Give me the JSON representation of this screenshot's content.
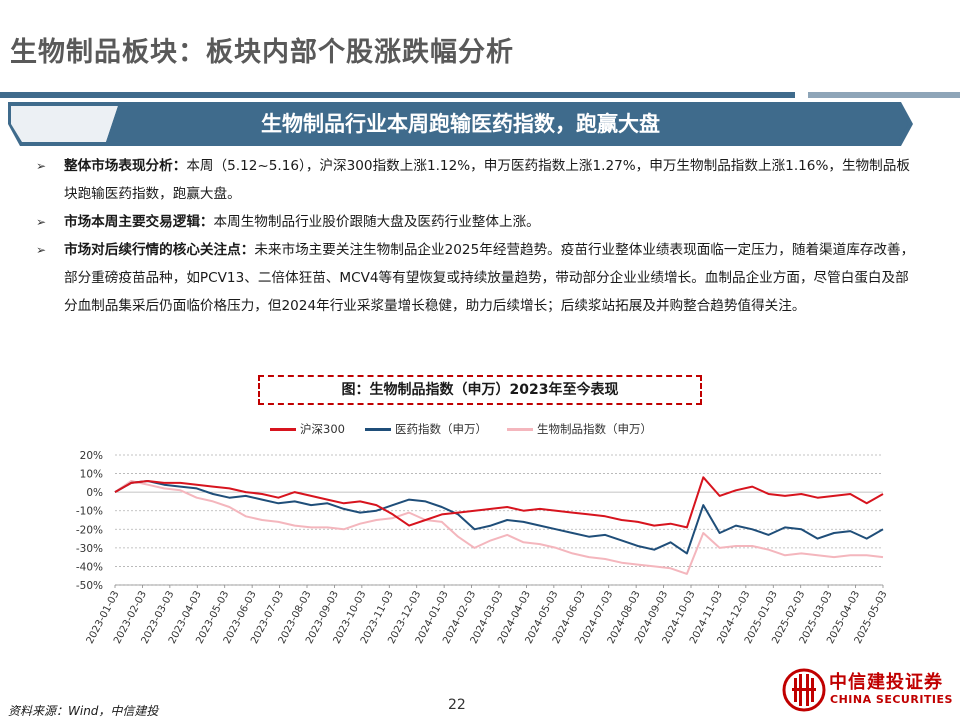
{
  "page": {
    "title": "生物制品板块：板块内部个股涨跌幅分析",
    "banner": "生物制品行业本周跑输医药指数，跑赢大盘",
    "bullets": [
      {
        "label": "整体市场表现分析：",
        "text": "本周（5.12~5.16），沪深300指数上涨1.12%，申万医药指数上涨1.27%，申万生物制品指数上涨1.16%，生物制品板块跑输医药指数，跑赢大盘。"
      },
      {
        "label": "市场本周主要交易逻辑：",
        "text": "本周生物制品行业股价跟随大盘及医药行业整体上涨。"
      },
      {
        "label": "市场对后续行情的核心关注点：",
        "text": "未来市场主要关注生物制品企业2025年经营趋势。疫苗行业整体业绩表现面临一定压力，随着渠道库存改善，部分重磅疫苗品种，如PCV13、二倍体狂苗、MCV4等有望恢复或持续放量趋势，带动部分企业业绩增长。血制品企业方面，尽管白蛋白及部分血制品集采后仍面临价格压力，但2024年行业采浆量增长稳健，助力后续增长；后续浆站拓展及并购整合趋势值得关注。"
      }
    ],
    "source": "资料来源：Wind，中信建投",
    "page_number": "22",
    "logo_cn": "中信建投证券",
    "logo_en": "CHINA SECURITIES"
  },
  "colors": {
    "accent_blue": "#3f6b8c",
    "hs300": "#d7141e",
    "pharma": "#1f4e79",
    "bio": "#f4b6bd",
    "logo_red": "#c00000"
  },
  "chart_data": {
    "type": "line",
    "title": "图：生物制品指数（申万）2023年至今表现",
    "ylim": [
      -50,
      20
    ],
    "yticks": [
      "20%",
      "10%",
      "0%",
      "-10%",
      "-20%",
      "-30%",
      "-40%",
      "-50%"
    ],
    "xtick_labels": [
      "2023-01-03",
      "2023-02-03",
      "2023-03-03",
      "2023-04-03",
      "2023-05-03",
      "2023-06-03",
      "2023-07-03",
      "2023-08-03",
      "2023-09-03",
      "2023-10-03",
      "2023-11-03",
      "2023-12-03",
      "2024-01-03",
      "2024-02-03",
      "2024-03-03",
      "2024-04-03",
      "2024-05-03",
      "2024-06-03",
      "2024-07-03",
      "2024-08-03",
      "2024-09-03",
      "2024-10-03",
      "2024-11-03",
      "2024-12-03",
      "2025-01-03",
      "2025-02-03",
      "2025-03-03",
      "2025-04-03",
      "2025-05-03"
    ],
    "grid": true,
    "legend_position": "top",
    "series": [
      {
        "name": "沪深300",
        "color": "#d7141e",
        "values": [
          0,
          5,
          6,
          5,
          5,
          4,
          3,
          2,
          0,
          -1,
          -3,
          0,
          -2,
          -4,
          -6,
          -5,
          -7,
          -12,
          -18,
          -15,
          -12,
          -11,
          -10,
          -9,
          -8,
          -10,
          -9,
          -10,
          -11,
          -12,
          -13,
          -15,
          -16,
          -18,
          -17,
          -19,
          8,
          -2,
          1,
          3,
          -1,
          -2,
          -1,
          -3,
          -2,
          -1,
          -6,
          -1
        ]
      },
      {
        "name": "医药指数（申万）",
        "color": "#1f4e79",
        "values": [
          0,
          5,
          6,
          4,
          3,
          2,
          -1,
          -3,
          -2,
          -4,
          -6,
          -5,
          -7,
          -6,
          -9,
          -11,
          -10,
          -7,
          -4,
          -5,
          -8,
          -12,
          -20,
          -18,
          -15,
          -16,
          -18,
          -20,
          -22,
          -24,
          -23,
          -26,
          -29,
          -31,
          -27,
          -33,
          -7,
          -22,
          -18,
          -20,
          -23,
          -19,
          -20,
          -25,
          -22,
          -21,
          -25,
          -20
        ]
      },
      {
        "name": "生物制品指数（申万）",
        "color": "#f4b6bd",
        "values": [
          0,
          6,
          4,
          2,
          1,
          -3,
          -5,
          -8,
          -13,
          -15,
          -16,
          -18,
          -19,
          -19,
          -20,
          -17,
          -15,
          -14,
          -11,
          -15,
          -16,
          -24,
          -30,
          -26,
          -23,
          -27,
          -28,
          -30,
          -33,
          -35,
          -36,
          -38,
          -39,
          -40,
          -41,
          -44,
          -22,
          -30,
          -29,
          -29,
          -31,
          -34,
          -33,
          -34,
          -35,
          -34,
          -34,
          -35
        ]
      }
    ]
  }
}
